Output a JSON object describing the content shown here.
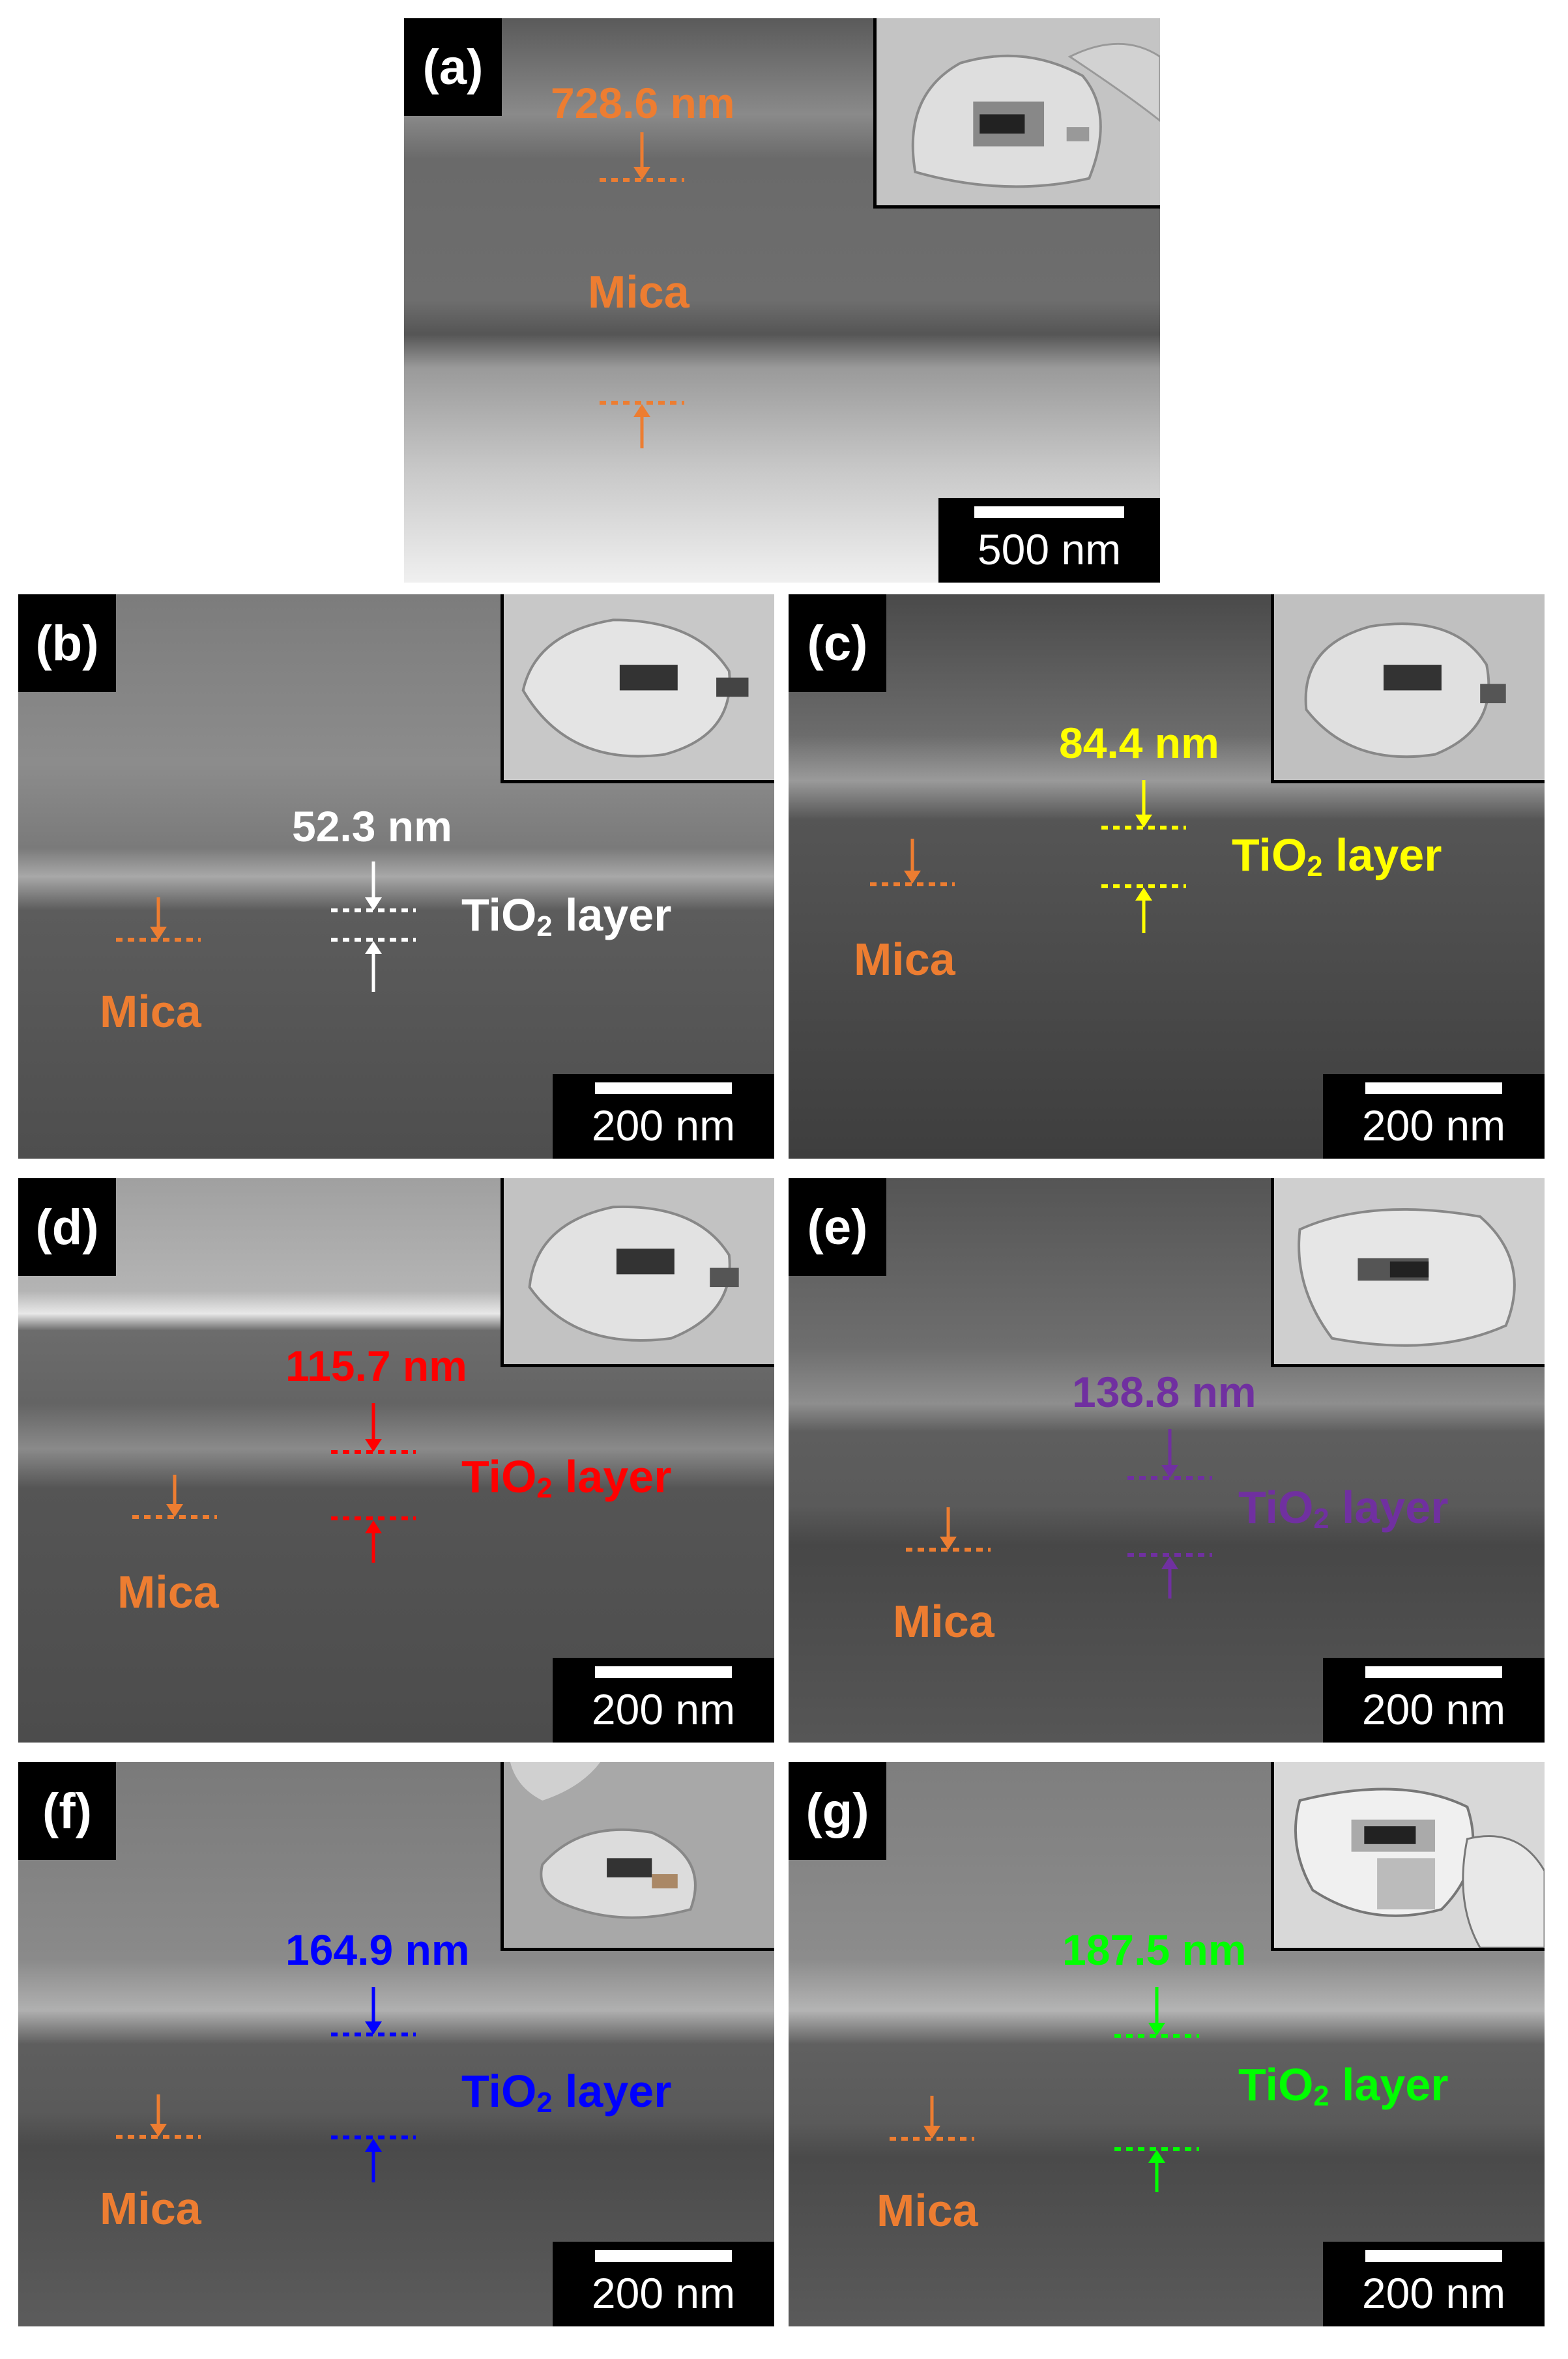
{
  "colors": {
    "mica": "#ed7d31",
    "b": "#ffffff",
    "c": "#ffff00",
    "d": "#ff0000",
    "e": "#7030a0",
    "f": "#0000ff",
    "g": "#00ff00"
  },
  "panels": {
    "a": {
      "label": "(a)",
      "thickness": "728.6 nm",
      "mica": "Mica",
      "scale": "500 nm"
    },
    "b": {
      "label": "(b)",
      "thickness": "52.3 nm",
      "layer": "TiO",
      "sub": "2",
      "layer_suffix": " layer",
      "mica": "Mica",
      "scale": "200 nm"
    },
    "c": {
      "label": "(c)",
      "thickness": "84.4 nm",
      "layer": "TiO",
      "sub": "2",
      "layer_suffix": " layer",
      "mica": "Mica",
      "scale": "200 nm"
    },
    "d": {
      "label": "(d)",
      "thickness": "115.7 nm",
      "layer": "TiO",
      "sub": "2",
      "layer_suffix": " layer",
      "mica": "Mica",
      "scale": "200 nm"
    },
    "e": {
      "label": "(e)",
      "thickness": "138.8 nm",
      "layer": "TiO",
      "sub": "2",
      "layer_suffix": " layer",
      "mica": "Mica",
      "scale": "200 nm"
    },
    "f": {
      "label": "(f)",
      "thickness": "164.9 nm",
      "layer": "TiO",
      "sub": "2",
      "layer_suffix": " layer",
      "mica": "Mica",
      "scale": "200 nm"
    },
    "g": {
      "label": "(g)",
      "thickness": "187.5 nm",
      "layer": "TiO",
      "sub": "2",
      "layer_suffix": " layer",
      "mica": "Mica",
      "scale": "200 nm"
    }
  }
}
